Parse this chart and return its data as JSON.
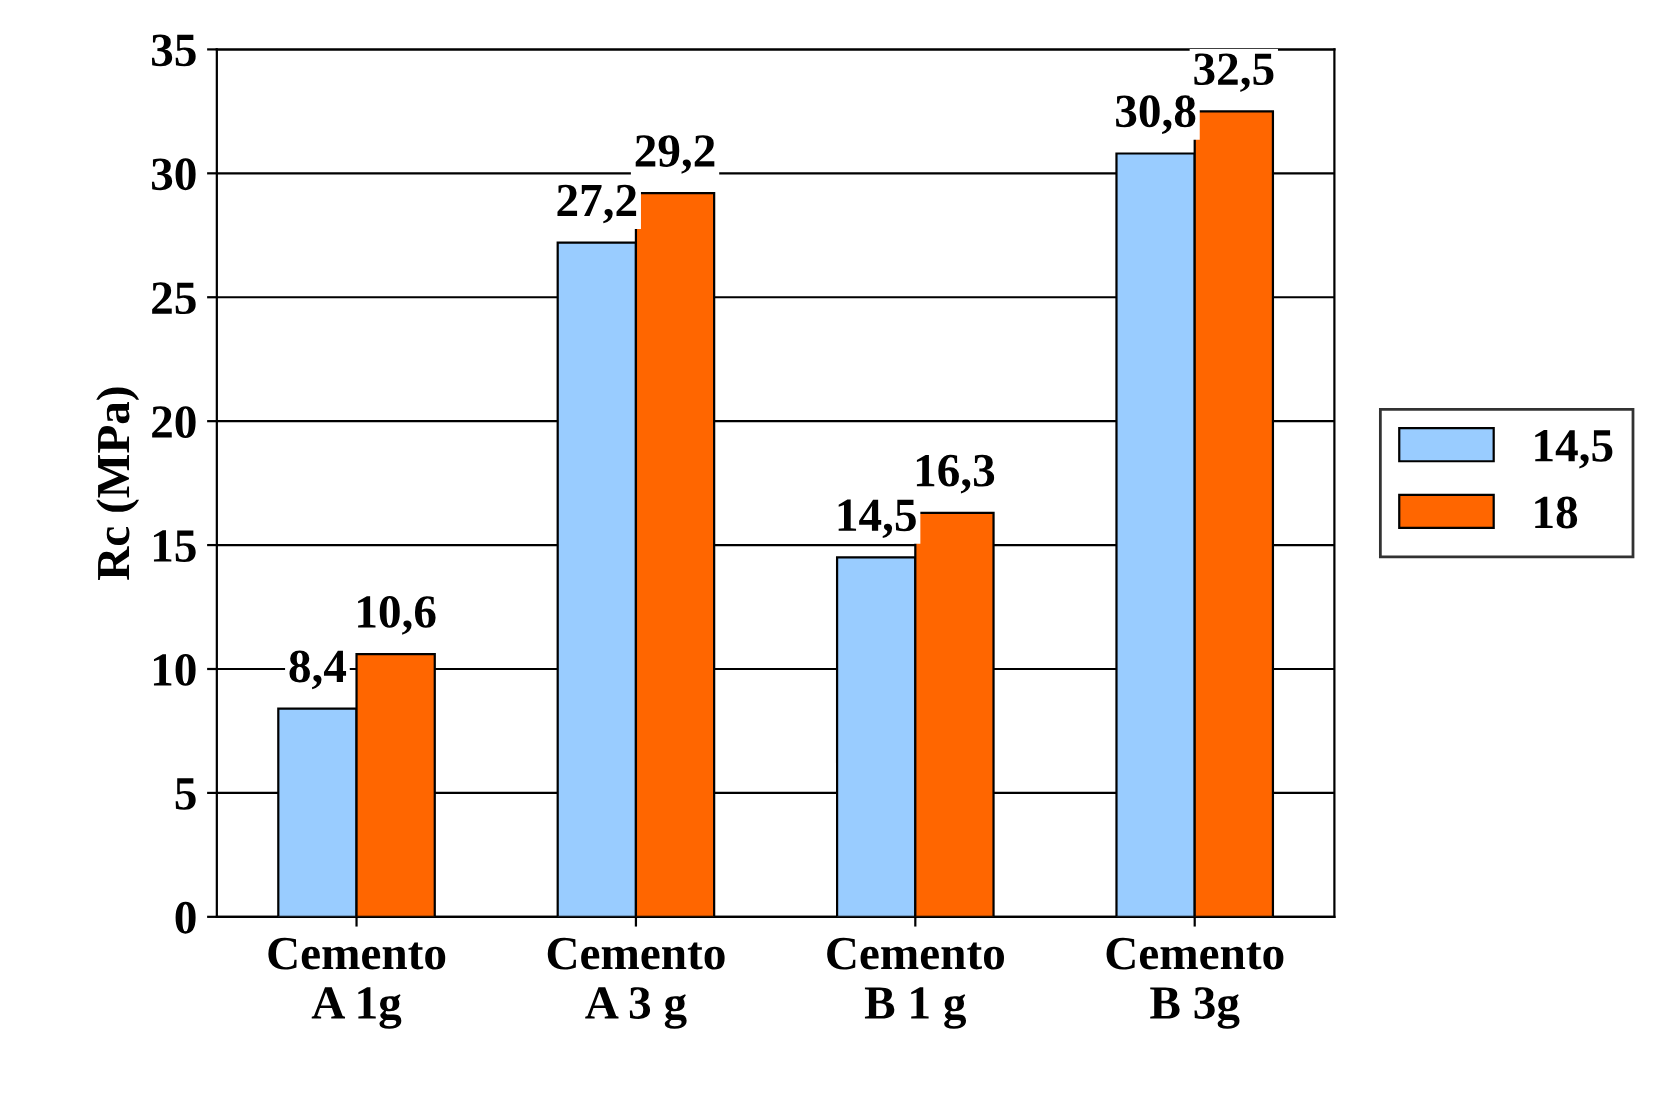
{
  "chart_data": {
    "type": "bar",
    "ylabel": "Rc (MPa)",
    "categories": [
      "Cemento\nA 1g",
      "Cemento\nA 3 g",
      "Cemento\nB 1 g",
      "Cemento\nB 3g"
    ],
    "series": [
      {
        "name": "14,5",
        "color": "#99ccff",
        "values": [
          8.4,
          27.2,
          14.5,
          30.8
        ],
        "value_labels": [
          "8,4",
          "27,2",
          "14,5",
          "30,8"
        ]
      },
      {
        "name": "18",
        "color": "#ff6600",
        "values": [
          10.6,
          29.2,
          16.3,
          32.5
        ],
        "value_labels": [
          "10,6",
          "29,2",
          "16,3",
          "32,5"
        ]
      }
    ],
    "ylim": [
      0,
      35
    ],
    "yticks": [
      0,
      5,
      10,
      15,
      20,
      25,
      30,
      35
    ],
    "grid": "y",
    "legend": "right"
  }
}
